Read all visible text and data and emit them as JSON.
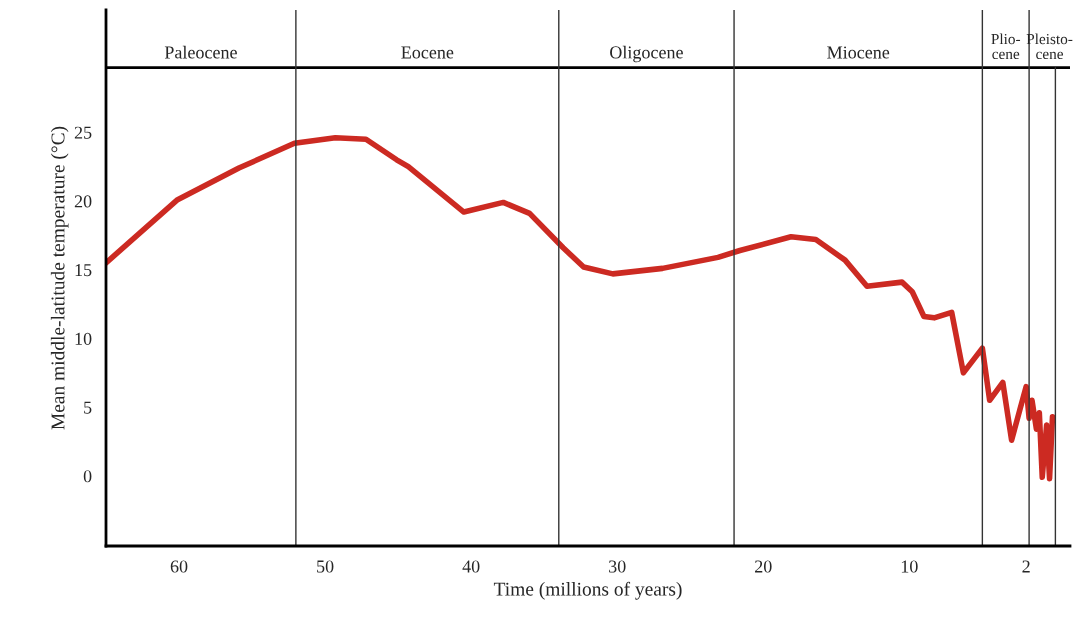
{
  "chart_data": {
    "type": "line",
    "xlabel": "Time (millions of years)",
    "ylabel": "Mean middle-latitude temperature (°C)",
    "x": [
      65,
      60.1,
      55.9,
      52.1,
      49.3,
      47.2,
      45.1,
      44.3,
      40.5,
      37.8,
      36.0,
      33.7,
      32.3,
      30.3,
      26.9,
      23.1,
      21.6,
      18.1,
      16.4,
      14.4,
      12.9,
      10.5,
      9.8,
      9.0,
      8.3,
      7.1,
      6.3,
      5.0,
      4.5,
      3.6,
      3.0,
      2.0,
      1.8,
      1.6,
      1.3,
      1.1,
      0.9,
      0.6,
      0.4,
      0.2
    ],
    "series": [
      {
        "color": "#cc2a22",
        "values": [
          15.5,
          20.1,
          22.4,
          24.2,
          24.6,
          24.5,
          23.0,
          22.5,
          19.2,
          19.9,
          19.1,
          16.6,
          15.2,
          14.7,
          15.1,
          15.9,
          16.4,
          17.4,
          17.2,
          15.7,
          13.8,
          14.1,
          13.4,
          11.6,
          11.5,
          11.9,
          7.5,
          9.3,
          5.5,
          6.8,
          2.6,
          6.5,
          4.2,
          5.5,
          3.4,
          4.6,
          -0.1,
          3.7,
          -0.2,
          4.3
        ]
      }
    ],
    "xlim": [
      65,
      -1
    ],
    "xticks": [
      60,
      50,
      40,
      30,
      20,
      10,
      2
    ],
    "ylim": [
      -5.1,
      33.9
    ],
    "yticks": [
      0,
      5,
      10,
      15,
      20,
      25
    ],
    "ref_lines": [
      {
        "axis": "x",
        "value": 52
      },
      {
        "axis": "x",
        "value": 34
      },
      {
        "axis": "x",
        "value": 22
      },
      {
        "axis": "x",
        "value": 5
      },
      {
        "axis": "x",
        "value": 1.8
      },
      {
        "axis": "x",
        "value": 0
      },
      {
        "axis": "y",
        "value": 29.7
      }
    ],
    "annotations": [
      "Paleocene",
      "Eocene",
      "Oligocene",
      "Miocene",
      "Plio-\ncene",
      "Pleisto-\ncene"
    ],
    "grid": false,
    "legend": false,
    "marker": "none",
    "line_style": "solid"
  }
}
